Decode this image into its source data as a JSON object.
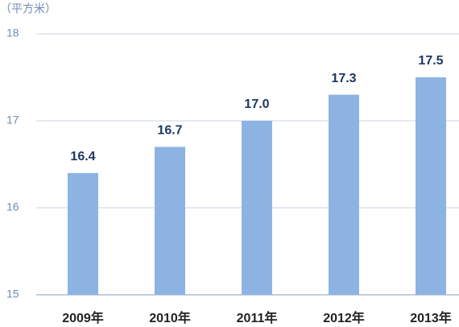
{
  "chart_data": {
    "type": "bar",
    "unit_label": "（平方米）",
    "categories": [
      "2009年",
      "2010年",
      "2011年",
      "2012年",
      "2013年"
    ],
    "values": [
      16.4,
      16.7,
      17.0,
      17.3,
      17.5
    ],
    "value_labels": [
      "16.4",
      "16.7",
      "17.0",
      "17.3",
      "17.5"
    ],
    "color": "#8db3e2",
    "ylim": [
      15,
      18
    ],
    "yticks": [
      15,
      16,
      17,
      18
    ],
    "grid": true
  }
}
